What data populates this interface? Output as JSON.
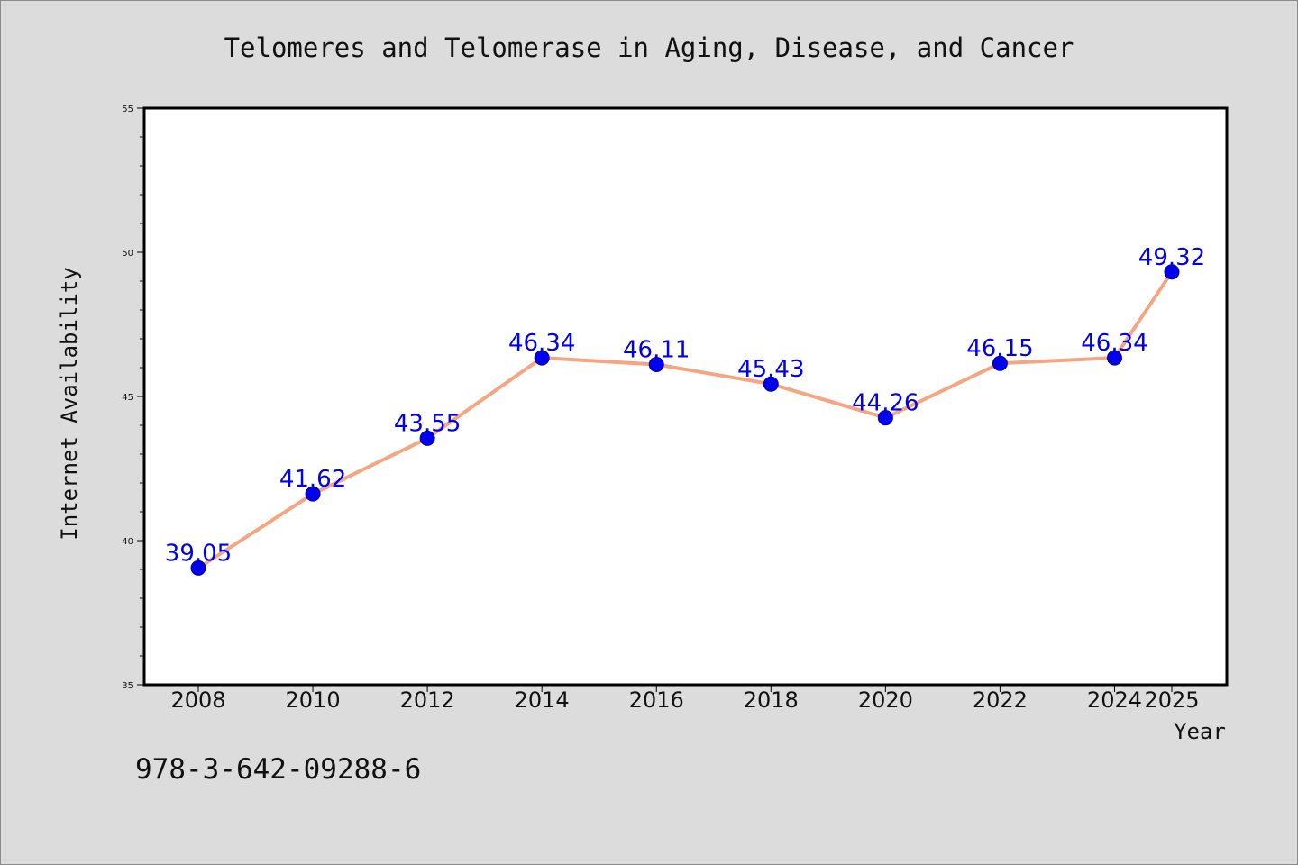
{
  "chart_data": {
    "type": "line",
    "title": "Telomeres and Telomerase in Aging, Disease, and Cancer",
    "xlabel": "Year",
    "ylabel": "Internet Availability",
    "categories": [
      "2008",
      "2010",
      "2012",
      "2014",
      "2016",
      "2018",
      "2020",
      "2022",
      "2024",
      "2025"
    ],
    "series": [
      {
        "values": [
          39.05,
          41.62,
          43.55,
          46.34,
          46.11,
          45.43,
          44.26,
          46.15,
          46.34,
          49.32
        ],
        "labels": [
          "39.05",
          "41.62",
          "43.55",
          "46.34",
          "46.11",
          "45.43",
          "44.26",
          "46.15",
          "46.34",
          "49.32"
        ]
      }
    ],
    "ylim": [
      35,
      55
    ],
    "yticks": [
      35,
      40,
      45,
      50,
      55
    ],
    "grid": false,
    "colors": {
      "line": "#f4a582",
      "marker": "#0000ee",
      "label": "#0000ee",
      "background": "#dcdcdc",
      "plot_background": "#ffffff"
    }
  },
  "footer": {
    "isbn": "978-3-642-09288-6"
  }
}
